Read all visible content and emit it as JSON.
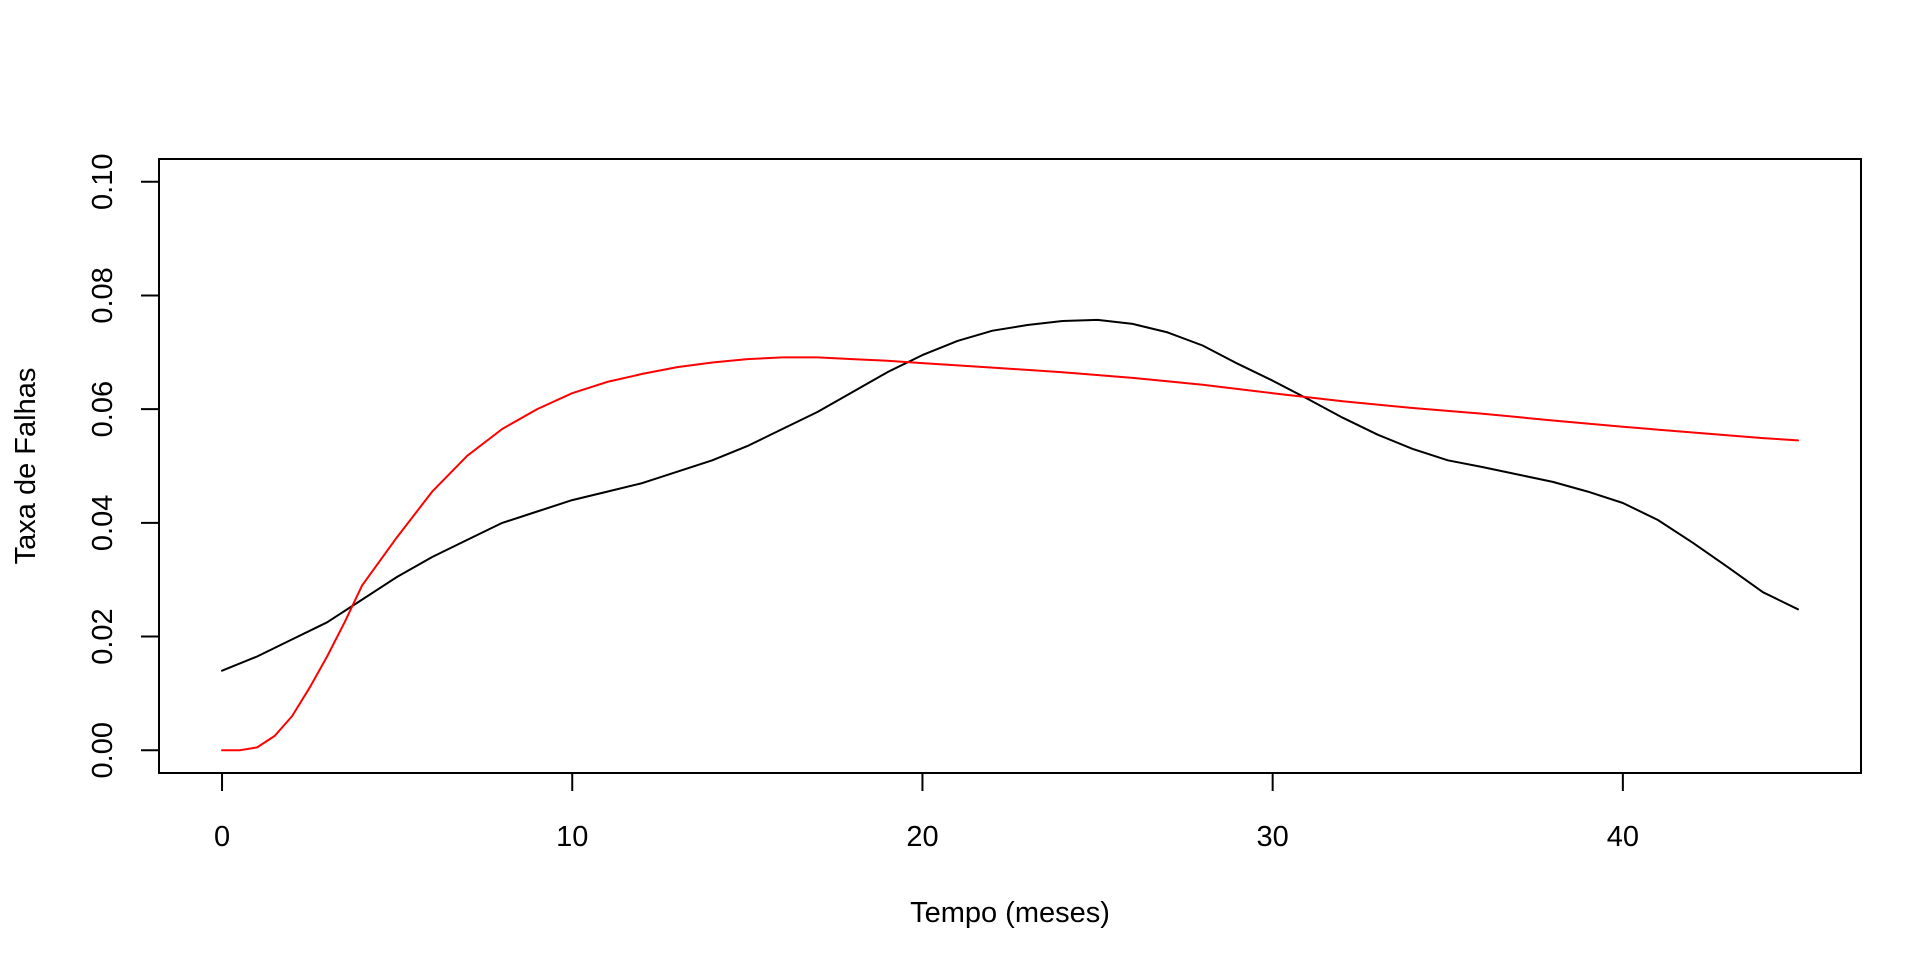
{
  "chart_data": {
    "type": "line",
    "title": "",
    "xlabel": "Tempo (meses)",
    "ylabel": "Taxa de Falhas",
    "xlim": [
      -1.8,
      46.8
    ],
    "ylim": [
      -0.004,
      0.104
    ],
    "x_ticks": [
      0,
      10,
      20,
      30,
      40
    ],
    "x_tick_labels": [
      "0",
      "10",
      "20",
      "30",
      "40"
    ],
    "y_ticks": [
      0.0,
      0.02,
      0.04,
      0.06,
      0.08,
      0.1
    ],
    "y_tick_labels": [
      "0.00",
      "0.02",
      "0.04",
      "0.06",
      "0.08",
      "0.10"
    ],
    "grid": false,
    "legend": "none",
    "series": [
      {
        "color": "#000000",
        "points": [
          [
            0,
            0.014
          ],
          [
            1,
            0.0165
          ],
          [
            2,
            0.0195
          ],
          [
            3,
            0.0225
          ],
          [
            4,
            0.0265
          ],
          [
            5,
            0.0305
          ],
          [
            6,
            0.034
          ],
          [
            7,
            0.037
          ],
          [
            8,
            0.04
          ],
          [
            9,
            0.042
          ],
          [
            10,
            0.044
          ],
          [
            11,
            0.0455
          ],
          [
            12,
            0.047
          ],
          [
            13,
            0.049
          ],
          [
            14,
            0.051
          ],
          [
            15,
            0.0535
          ],
          [
            16,
            0.0565
          ],
          [
            17,
            0.0595
          ],
          [
            18,
            0.063
          ],
          [
            19,
            0.0665
          ],
          [
            20,
            0.0695
          ],
          [
            21,
            0.072
          ],
          [
            22,
            0.0738
          ],
          [
            23,
            0.0748
          ],
          [
            24,
            0.0755
          ],
          [
            25,
            0.0757
          ],
          [
            26,
            0.075
          ],
          [
            27,
            0.0735
          ],
          [
            28,
            0.0712
          ],
          [
            29,
            0.068
          ],
          [
            30,
            0.065
          ],
          [
            31,
            0.0618
          ],
          [
            32,
            0.0585
          ],
          [
            33,
            0.0555
          ],
          [
            34,
            0.053
          ],
          [
            35,
            0.051
          ],
          [
            36,
            0.0498
          ],
          [
            37,
            0.0485
          ],
          [
            38,
            0.0472
          ],
          [
            39,
            0.0455
          ],
          [
            40,
            0.0435
          ],
          [
            41,
            0.0405
          ],
          [
            42,
            0.0365
          ],
          [
            43,
            0.0322
          ],
          [
            44,
            0.0278
          ],
          [
            45,
            0.0248
          ]
        ]
      },
      {
        "color": "#ff0000",
        "points": [
          [
            0,
            0.0
          ],
          [
            0.5,
            0.0
          ],
          [
            1,
            0.0005
          ],
          [
            1.5,
            0.0025
          ],
          [
            2,
            0.006
          ],
          [
            2.5,
            0.011
          ],
          [
            3,
            0.0165
          ],
          [
            3.5,
            0.0225
          ],
          [
            4,
            0.029
          ],
          [
            5,
            0.0375
          ],
          [
            6,
            0.0455
          ],
          [
            7,
            0.0518
          ],
          [
            8,
            0.0565
          ],
          [
            9,
            0.06
          ],
          [
            10,
            0.0628
          ],
          [
            11,
            0.0648
          ],
          [
            12,
            0.0662
          ],
          [
            13,
            0.0674
          ],
          [
            14,
            0.0682
          ],
          [
            15,
            0.0688
          ],
          [
            16,
            0.0691
          ],
          [
            17,
            0.0691
          ],
          [
            18,
            0.0688
          ],
          [
            19,
            0.0685
          ],
          [
            20,
            0.0681
          ],
          [
            22,
            0.0673
          ],
          [
            24,
            0.0665
          ],
          [
            26,
            0.0655
          ],
          [
            28,
            0.0643
          ],
          [
            30,
            0.0628
          ],
          [
            32,
            0.0614
          ],
          [
            34,
            0.0602
          ],
          [
            36,
            0.0592
          ],
          [
            38,
            0.058
          ],
          [
            40,
            0.0569
          ],
          [
            42,
            0.0559
          ],
          [
            44,
            0.0549
          ],
          [
            45,
            0.0545
          ]
        ]
      }
    ]
  }
}
